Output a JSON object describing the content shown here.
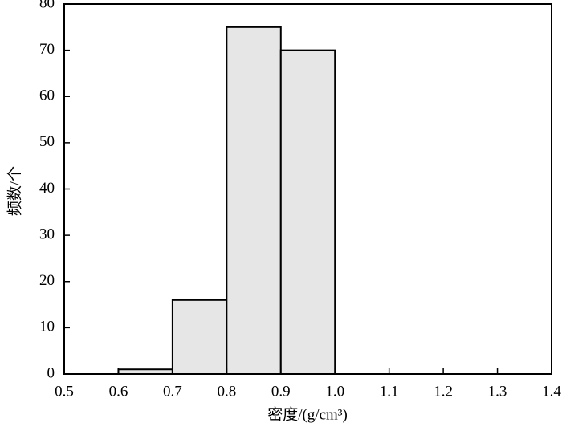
{
  "chart_data": {
    "type": "histogram",
    "bins": [
      0.6,
      0.7,
      0.8,
      0.9,
      1.0
    ],
    "values": [
      1,
      16,
      75,
      70
    ],
    "color": "#e6e6e6",
    "xlabel": "密度/(g/cm³)",
    "ylabel": "频数/个",
    "xlim": [
      0.5,
      1.4
    ],
    "xticks": [
      0.5,
      0.6,
      0.7,
      0.8,
      0.9,
      {
        "value": 1,
        "label": "1.0"
      },
      1.1,
      1.2,
      1.3,
      1.4
    ],
    "ylim": [
      0,
      80
    ],
    "yticks": [
      0,
      10,
      20,
      30,
      40,
      50,
      60,
      70,
      80
    ]
  }
}
